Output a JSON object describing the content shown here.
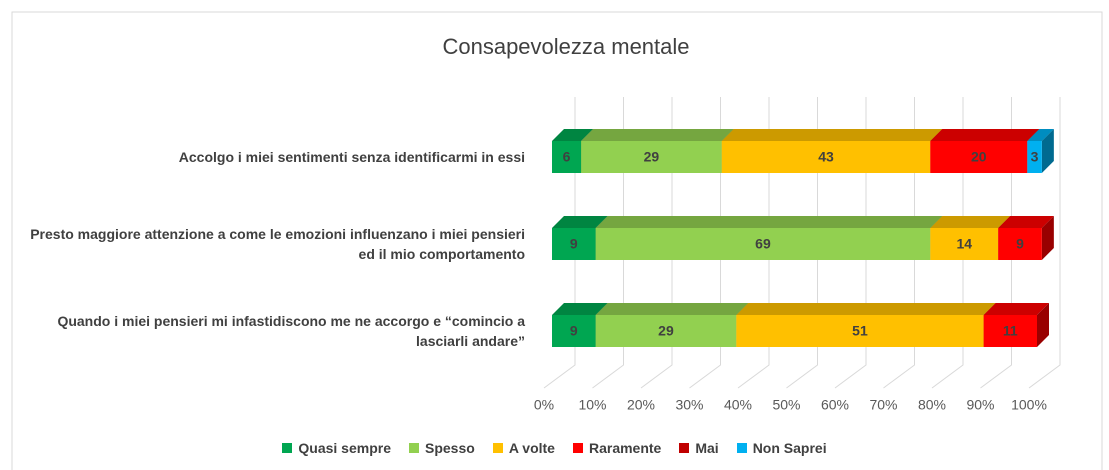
{
  "chart_data": {
    "type": "bar3d_stacked_horizontal",
    "title": "Consapevolezza mentale",
    "categories": [
      "Accolgo i miei sentimenti senza identificarmi in essi",
      "Presto maggiore attenzione a come le emozioni influenzano i miei pensieri ed il mio comportamento",
      "Quando i miei pensieri mi infastidiscono me ne accorgo e “comincio a lasciarli andare”"
    ],
    "series": [
      {
        "name": "Quasi sempre",
        "color": "#00a651",
        "values": [
          6,
          9,
          9
        ]
      },
      {
        "name": "Spesso",
        "color": "#92d050",
        "values": [
          29,
          69,
          29
        ]
      },
      {
        "name": "A volte",
        "color": "#ffc000",
        "values": [
          43,
          14,
          51
        ]
      },
      {
        "name": "Raramente",
        "color": "#ff0000",
        "values": [
          20,
          9,
          11
        ]
      },
      {
        "name": "Mai",
        "color": "#c00000",
        "values": [
          null,
          null,
          null
        ]
      },
      {
        "name": "Non Saprei",
        "color": "#00b0f0",
        "values": [
          3,
          null,
          null
        ]
      }
    ],
    "xlim": [
      0,
      100
    ],
    "xticks": [
      {
        "value": 0,
        "label": "0%"
      },
      {
        "value": 10,
        "label": "10%"
      },
      {
        "value": 20,
        "label": "20%"
      },
      {
        "value": 30,
        "label": "30%"
      },
      {
        "value": 40,
        "label": "40%"
      },
      {
        "value": 50,
        "label": "50%"
      },
      {
        "value": 60,
        "label": "60%"
      },
      {
        "value": 70,
        "label": "70%"
      },
      {
        "value": 80,
        "label": "80%"
      },
      {
        "value": 90,
        "label": "90%"
      },
      {
        "value": 100,
        "label": "100%"
      }
    ],
    "grid": true,
    "legend": "bottom"
  }
}
